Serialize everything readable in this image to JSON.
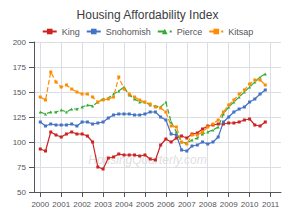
{
  "chart_data": {
    "type": "line",
    "title": "Housing Affordability Index",
    "x": [
      2000,
      2000.25,
      2000.5,
      2000.75,
      2001,
      2001.25,
      2001.5,
      2001.75,
      2002,
      2002.25,
      2002.5,
      2002.75,
      2003,
      2003.25,
      2003.5,
      2003.75,
      2004,
      2004.25,
      2004.5,
      2004.75,
      2005,
      2005.25,
      2005.5,
      2005.75,
      2006,
      2006.25,
      2006.5,
      2006.75,
      2007,
      2007.25,
      2007.5,
      2007.75,
      2008,
      2008.25,
      2008.5,
      2008.75,
      2009,
      2009.25,
      2009.5,
      2009.75,
      2010,
      2010.25,
      2010.5,
      2010.75
    ],
    "series": [
      {
        "name": "King",
        "color": "#cc2222",
        "marker": "square",
        "line_style": "solid",
        "values": [
          93,
          91,
          110,
          107,
          105,
          108,
          110,
          108,
          108,
          106,
          100,
          75,
          73,
          84,
          85,
          88,
          87,
          87,
          87,
          86,
          87,
          83,
          82,
          97,
          103,
          100,
          104,
          106,
          104,
          108,
          109,
          113,
          116,
          117,
          118,
          118,
          119,
          119,
          120,
          122,
          123,
          117,
          116,
          120
        ]
      },
      {
        "name": "Snohomish",
        "color": "#4472c4",
        "marker": "square",
        "line_style": "solid",
        "values": [
          120,
          116,
          118,
          117,
          117,
          117,
          118,
          116,
          120,
          120,
          118,
          119,
          120,
          124,
          127,
          128,
          128,
          128,
          127,
          127,
          128,
          130,
          130,
          125,
          122,
          108,
          107,
          92,
          91,
          96,
          97,
          100,
          98,
          100,
          105,
          120,
          125,
          130,
          133,
          135,
          140,
          143,
          148,
          152
        ]
      },
      {
        "name": "Pierce",
        "color": "#33aa33",
        "marker": "triangle",
        "line_style": "dashed",
        "values": [
          130,
          128,
          130,
          130,
          132,
          130,
          133,
          133,
          135,
          137,
          136,
          140,
          143,
          144,
          148,
          151,
          155,
          147,
          143,
          140,
          140,
          137,
          136,
          135,
          140,
          120,
          110,
          100,
          99,
          102,
          104,
          108,
          110,
          112,
          115,
          128,
          135,
          140,
          145,
          150,
          155,
          160,
          165,
          168
        ]
      },
      {
        "name": "Kitsap",
        "color": "#ff8c00",
        "marker": "square",
        "line_style": "dashed",
        "values": [
          145,
          142,
          170,
          160,
          155,
          157,
          153,
          150,
          148,
          148,
          145,
          140,
          142,
          143,
          145,
          165,
          153,
          148,
          145,
          142,
          140,
          138,
          135,
          134,
          130,
          116,
          115,
          100,
          98,
          107,
          107,
          110,
          115,
          118,
          122,
          130,
          137,
          142,
          148,
          152,
          158,
          162,
          162,
          157
        ]
      }
    ],
    "xlim": [
      1999.7,
      2011.5
    ],
    "xticks": [
      2000,
      2001,
      2002,
      2003,
      2004,
      2005,
      2006,
      2007,
      2008,
      2009,
      2010,
      2011
    ],
    "ylim": [
      50,
      200
    ],
    "yticks": [
      50,
      75,
      100,
      125,
      150,
      175,
      200
    ],
    "grid": true,
    "legend": "top",
    "annotations": [
      "HousingQuarterly.com"
    ]
  }
}
